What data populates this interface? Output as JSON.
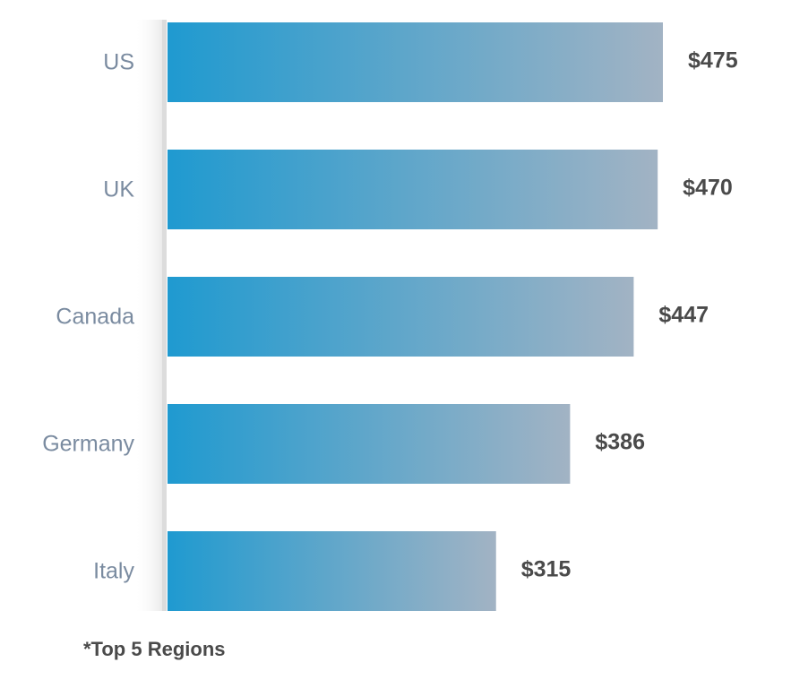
{
  "chart_data": {
    "type": "bar",
    "orientation": "horizontal",
    "categories": [
      "US",
      "UK",
      "Canada",
      "Germany",
      "Italy"
    ],
    "values": [
      475,
      470,
      447,
      386,
      315
    ],
    "value_labels": [
      "$475",
      "$470",
      "$447",
      "$386",
      "$315"
    ],
    "xlim": [
      0,
      475
    ],
    "grid": false,
    "legend": "none",
    "colors": {
      "bar_start": "#1f9ad0",
      "bar_end": "#a2b3c4",
      "axis": "#dcdcdc",
      "category_text": "#7a8ba0",
      "value_text": "#4a4a4a"
    }
  },
  "footnote": "*Top 5 Regions"
}
